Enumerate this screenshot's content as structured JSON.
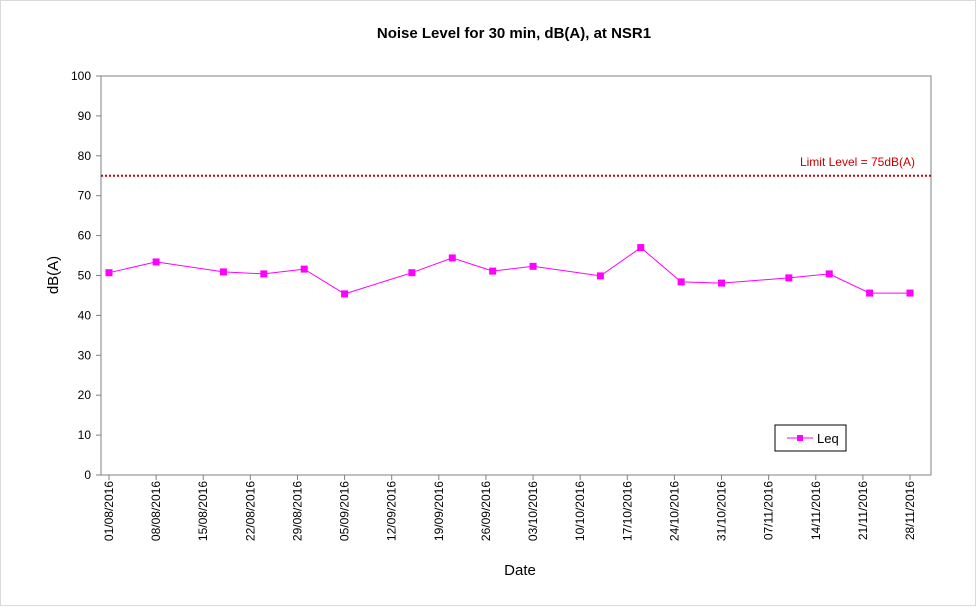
{
  "chart_data": {
    "type": "line",
    "title": "Noise Level for 30 min, dB(A), at NSR1",
    "xlabel": "Date",
    "ylabel": "dB(A)",
    "ylim": [
      0,
      100
    ],
    "yticks": [
      "0",
      "10",
      "20",
      "30",
      "40",
      "50",
      "60",
      "70",
      "80",
      "90",
      "100"
    ],
    "xlim": [
      "01/08/2016",
      "28/11/2016"
    ],
    "xticks": [
      "01/08/2016",
      "08/08/2016",
      "15/08/2016",
      "22/08/2016",
      "29/08/2016",
      "05/09/2016",
      "12/09/2016",
      "19/09/2016",
      "26/09/2016",
      "03/10/2016",
      "10/10/2016",
      "17/10/2016",
      "24/10/2016",
      "31/10/2016",
      "07/11/2016",
      "14/11/2016",
      "21/11/2016",
      "28/11/2016"
    ],
    "series": [
      {
        "name": "Leq",
        "color": "#ff00ff",
        "marker": "square",
        "points": [
          {
            "x": "01/08/2016",
            "y": 50.7
          },
          {
            "x": "08/08/2016",
            "y": 53.4
          },
          {
            "x": "18/08/2016",
            "y": 50.9
          },
          {
            "x": "24/08/2016",
            "y": 50.4
          },
          {
            "x": "30/08/2016",
            "y": 51.6
          },
          {
            "x": "05/09/2016",
            "y": 45.4
          },
          {
            "x": "15/09/2016",
            "y": 50.7
          },
          {
            "x": "21/09/2016",
            "y": 54.4
          },
          {
            "x": "27/09/2016",
            "y": 51.1
          },
          {
            "x": "03/10/2016",
            "y": 52.3
          },
          {
            "x": "13/10/2016",
            "y": 49.9
          },
          {
            "x": "19/10/2016",
            "y": 57.0
          },
          {
            "x": "25/10/2016",
            "y": 48.4
          },
          {
            "x": "31/10/2016",
            "y": 48.1
          },
          {
            "x": "10/11/2016",
            "y": 49.4
          },
          {
            "x": "16/11/2016",
            "y": 50.4
          },
          {
            "x": "22/11/2016",
            "y": 45.6
          },
          {
            "x": "28/11/2016",
            "y": 45.6
          }
        ]
      }
    ],
    "limit": {
      "value": 75,
      "label": "Limit Level = 75dB(A)",
      "color": "#cc0000",
      "style": "dotted"
    },
    "legend": {
      "placement": "bottom-right",
      "entries": [
        "Leq"
      ]
    },
    "grid": false
  }
}
